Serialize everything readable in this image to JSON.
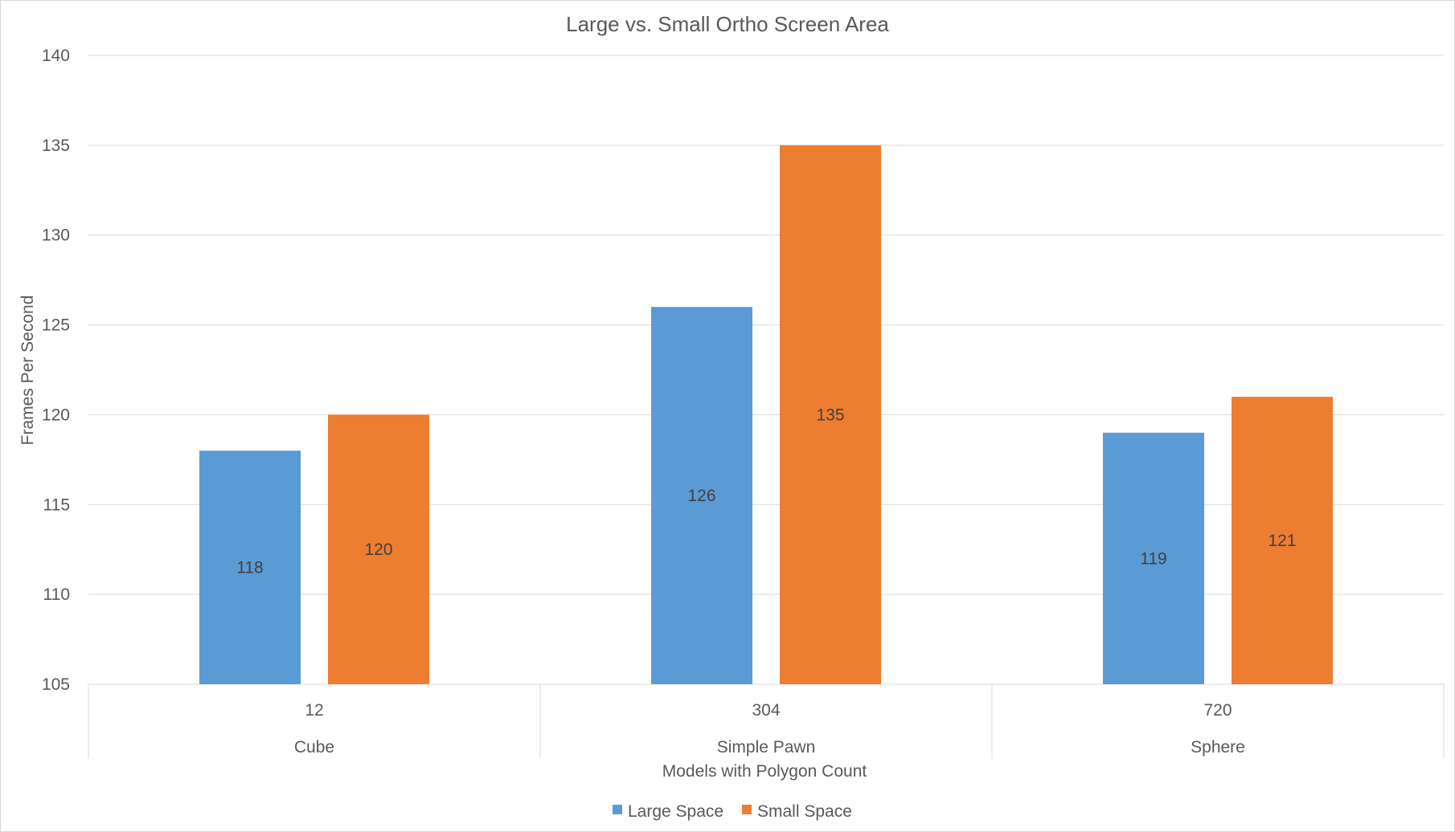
{
  "chart_data": {
    "type": "bar",
    "title": "Large vs. Small Ortho Screen Area",
    "xlabel": "Models with Polygon Count",
    "ylabel": "Frames Per Second",
    "ylim": [
      105,
      140
    ],
    "yticks": [
      105,
      110,
      115,
      120,
      125,
      130,
      135,
      140
    ],
    "categories": [
      {
        "count": "12",
        "name": "Cube"
      },
      {
        "count": "304",
        "name": "Simple Pawn"
      },
      {
        "count": "720",
        "name": "Sphere"
      }
    ],
    "series": [
      {
        "name": "Large Space",
        "color": "#5b9bd5",
        "values": [
          118,
          126,
          119
        ]
      },
      {
        "name": "Small Space",
        "color": "#ed7d31",
        "values": [
          120,
          135,
          121
        ]
      }
    ],
    "grid": true,
    "legend_position": "bottom"
  }
}
